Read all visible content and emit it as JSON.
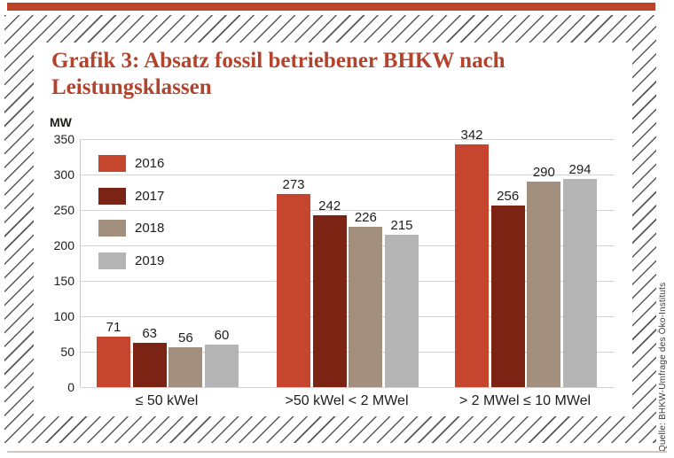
{
  "page": {
    "source_note": "Quelle: BHKW-Umfrage des Öko-Instituts"
  },
  "colors": {
    "accent_bar": "#bc4327",
    "title_text": "#b2432c",
    "gridline": "#d3d3d3",
    "hatch_line": "#565656",
    "series_2016": "#c5452f",
    "series_2017": "#7c2414",
    "series_2018": "#a28f7e",
    "series_2019": "#b4b4b4"
  },
  "chart_data": {
    "type": "bar",
    "title": "Grafik 3: Absatz fossil betriebener BHKW nach Leistungsklassen",
    "unit_label": "MW",
    "ylabel": "MW",
    "ylim": [
      0,
      350
    ],
    "ytick_step": 50,
    "yticks": [
      350,
      300,
      250,
      200,
      150,
      100,
      50,
      0
    ],
    "grid": true,
    "legend_position": "inside-top-left",
    "categories": [
      "≤ 50 kWel",
      ">50 kWel < 2 MWel",
      "> 2 MWel ≤ 10 MWel"
    ],
    "series": [
      {
        "name": "2016",
        "color": "#c5452f",
        "values": [
          71,
          273,
          342
        ]
      },
      {
        "name": "2017",
        "color": "#7c2414",
        "values": [
          63,
          242,
          256
        ]
      },
      {
        "name": "2018",
        "color": "#a28f7e",
        "values": [
          56,
          226,
          290
        ]
      },
      {
        "name": "2019",
        "color": "#b4b4b4",
        "values": [
          60,
          215,
          294
        ]
      }
    ]
  }
}
